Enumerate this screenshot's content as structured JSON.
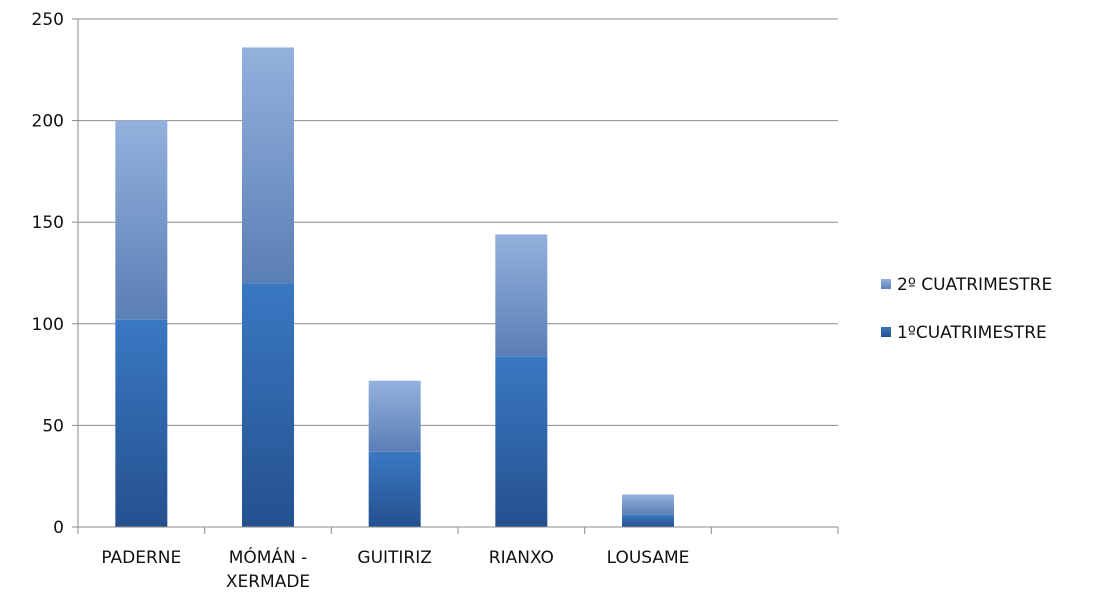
{
  "chart_data": {
    "type": "bar",
    "stacked": true,
    "title": "",
    "xlabel": "",
    "ylabel": "",
    "categories": [
      "PADERNE",
      "MÓMÁN - XERMADE",
      "GUITIRIZ",
      "RIANXO",
      "LOUSAME",
      ""
    ],
    "category_lines": [
      [
        "PADERNE"
      ],
      [
        "MÓMÁN -",
        "XERMADE"
      ],
      [
        "GUITIRIZ"
      ],
      [
        "RIANXO"
      ],
      [
        "LOUSAME"
      ],
      [
        ""
      ]
    ],
    "series": [
      {
        "name": "1ºCUATRIMESTRE",
        "values": [
          102,
          120,
          37,
          84,
          6,
          null
        ],
        "color_top": "#3a78c2",
        "color_bottom": "#24508f"
      },
      {
        "name": "2º CUATRIMESTRE",
        "values": [
          98,
          116,
          35,
          60,
          10,
          null
        ],
        "color_top": "#93b1dc",
        "color_bottom": "#5a7eb6"
      }
    ],
    "ylim": [
      0,
      250
    ],
    "yticks": [
      0,
      50,
      100,
      150,
      200,
      250
    ],
    "grid": true,
    "legend_position": "right",
    "legend_order": [
      "2º CUATRIMESTRE",
      "1ºCUATRIMESTRE"
    ]
  }
}
